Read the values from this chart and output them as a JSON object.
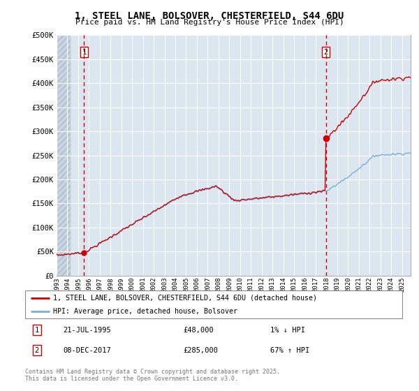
{
  "title": "1, STEEL LANE, BOLSOVER, CHESTERFIELD, S44 6DU",
  "subtitle": "Price paid vs. HM Land Registry's House Price Index (HPI)",
  "background_color": "#ffffff",
  "plot_bg_color": "#dce6f0",
  "grid_color": "#ffffff",
  "hatch_color": "#c8d4e0",
  "ylim": [
    0,
    500000
  ],
  "yticks": [
    0,
    50000,
    100000,
    150000,
    200000,
    250000,
    300000,
    350000,
    400000,
    450000,
    500000
  ],
  "ytick_labels": [
    "£0",
    "£50K",
    "£100K",
    "£150K",
    "£200K",
    "£250K",
    "£300K",
    "£350K",
    "£400K",
    "£450K",
    "£500K"
  ],
  "purchase1_year": 1995.55,
  "purchase1_price": 48000,
  "purchase2_year": 2017.94,
  "purchase2_price": 285000,
  "legend_line1": "1, STEEL LANE, BOLSOVER, CHESTERFIELD, S44 6DU (detached house)",
  "legend_line2": "HPI: Average price, detached house, Bolsover",
  "footer": "Contains HM Land Registry data © Crown copyright and database right 2025.\nThis data is licensed under the Open Government Licence v3.0.",
  "line_color_red": "#cc0000",
  "line_color_blue": "#7aafd4",
  "dashed_red": "#cc0000",
  "xmin": 1993.0,
  "xmax": 2025.8
}
